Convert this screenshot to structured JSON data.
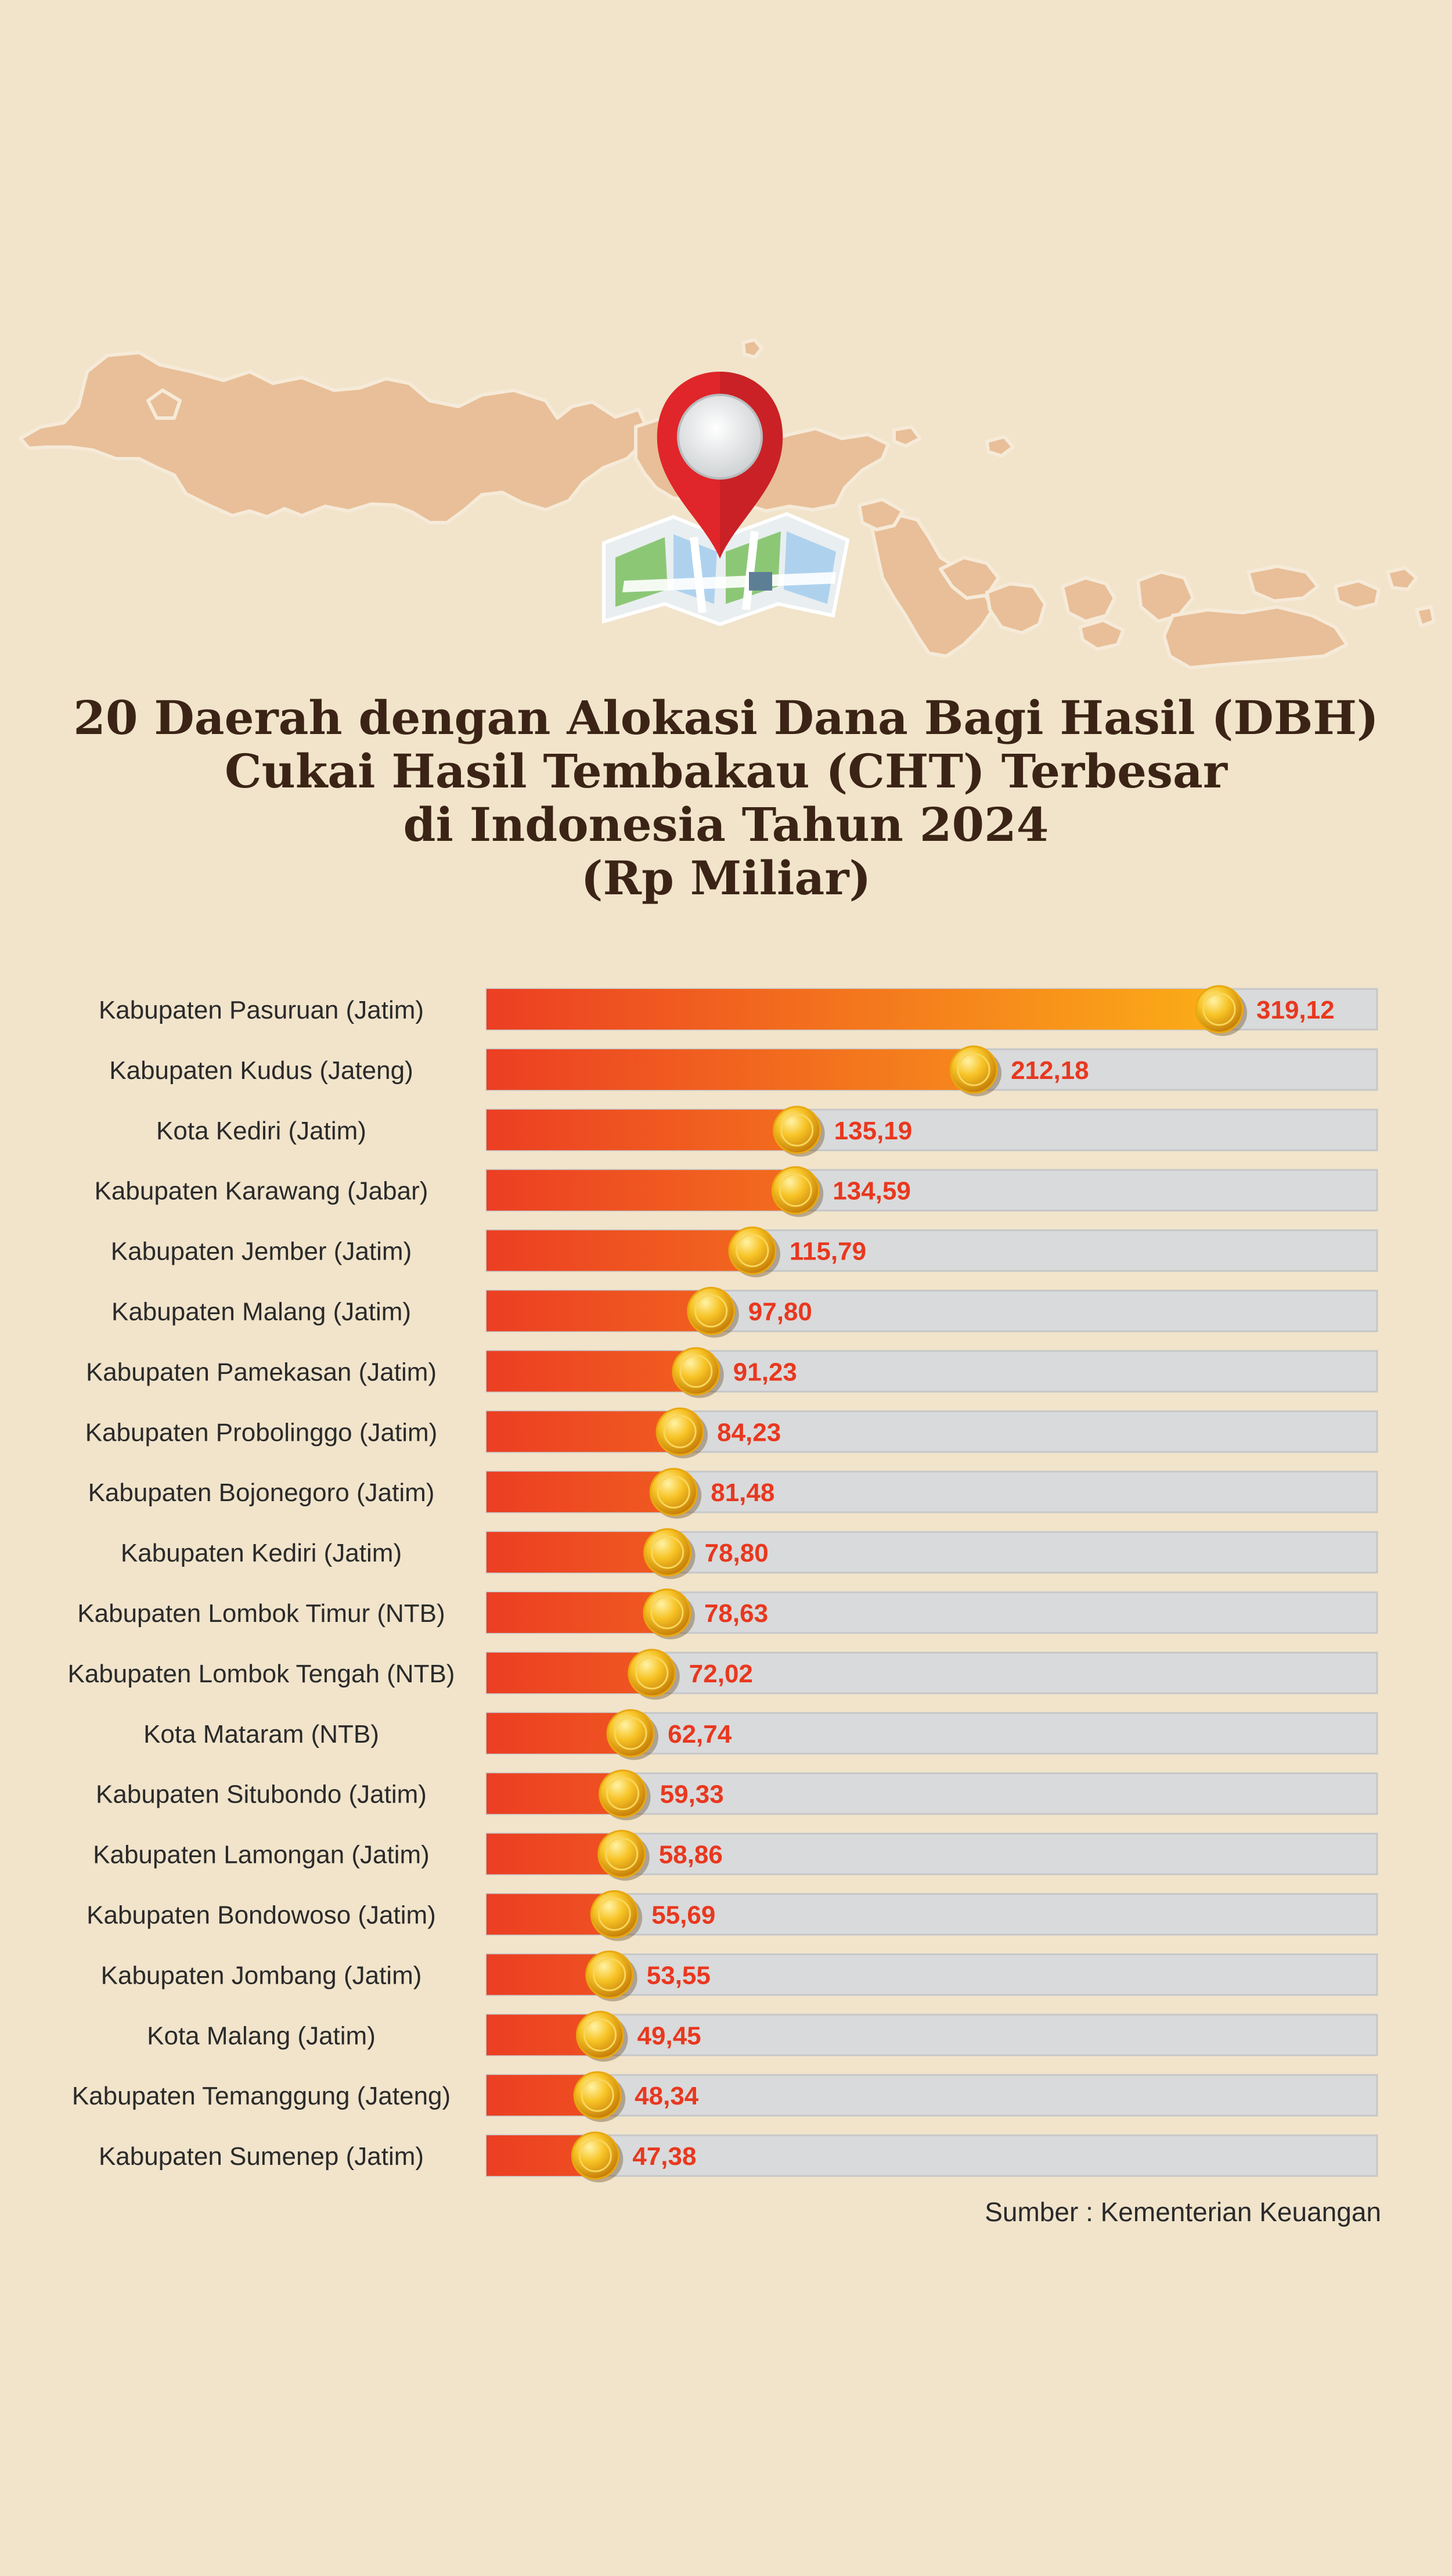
{
  "title": {
    "line1": "20 Daerah dengan Alokasi Dana Bagi Hasil (DBH)",
    "line2": "Cukai Hasil Tembakau (CHT) Terbesar",
    "line3": "di Indonesia Tahun 2024",
    "line4": "(Rp Miliar)"
  },
  "source": "Sumber : Kementerian Keuangan",
  "colors": {
    "background": "#f1e4cb",
    "map": "#e8bf98",
    "pin": "#e0262a",
    "bar_start": "#ec3e23",
    "bar_end": "#fcb217",
    "track": "#d9dadb",
    "value_text": "#e8381f"
  },
  "icons": {
    "map": "indonesia-map-icon",
    "pin": "location-pin-icon",
    "bar_end": "gold-coin-icon"
  },
  "chart_data": {
    "type": "bar",
    "orientation": "horizontal",
    "categories": [
      "Kabupaten Pasuruan (Jatim)",
      "Kabupaten Kudus (Jateng)",
      "Kota Kediri (Jatim)",
      "Kabupaten Karawang (Jabar)",
      "Kabupaten Jember (Jatim)",
      "Kabupaten Malang (Jatim)",
      "Kabupaten Pamekasan (Jatim)",
      "Kabupaten Probolinggo (Jatim)",
      "Kabupaten Bojonegoro (Jatim)",
      "Kabupaten Kediri (Jatim)",
      "Kabupaten Lombok Timur (NTB)",
      "Kabupaten Lombok Tengah (NTB)",
      "Kota Mataram (NTB)",
      "Kabupaten Situbondo (Jatim)",
      "Kabupaten Lamongan (Jatim)",
      "Kabupaten Bondowoso (Jatim)",
      "Kabupaten Jombang (Jatim)",
      "Kota Malang (Jatim)",
      "Kabupaten Temanggung (Jateng)",
      "Kabupaten Sumenep (Jatim)"
    ],
    "values": [
      319.12,
      212.18,
      135.19,
      134.59,
      115.79,
      97.8,
      91.23,
      84.23,
      81.48,
      78.8,
      78.63,
      72.02,
      62.74,
      59.33,
      58.86,
      55.69,
      53.55,
      49.45,
      48.34,
      47.38
    ],
    "value_labels": [
      "319,12",
      "212,18",
      "135,19",
      "134,59",
      "115,79",
      "97,80",
      "91,23",
      "84,23",
      "81,48",
      "78,80",
      "78,63",
      "72,02",
      "62,74",
      "59,33",
      "58,86",
      "55,69",
      "53,55",
      "49,45",
      "48,34",
      "47,38"
    ],
    "xlim": [
      0,
      360
    ],
    "unit": "Rp Miliar",
    "grid": false,
    "legend": "none"
  }
}
